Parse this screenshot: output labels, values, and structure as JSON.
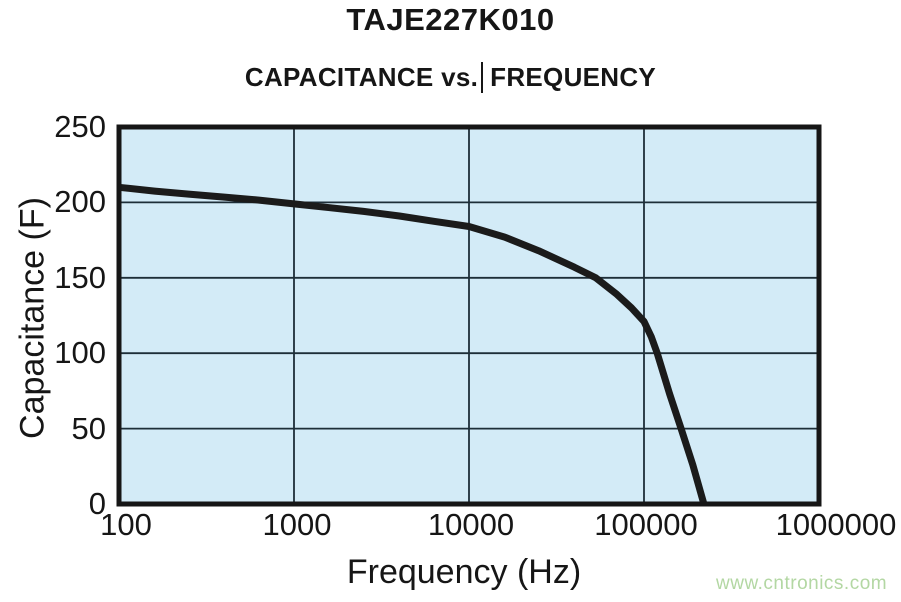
{
  "page": {
    "title": "TAJE227K010",
    "subtitle_left": "CAPACITANCE vs.",
    "subtitle_right": "FREQUENCY",
    "watermark": "www.cntronics.com"
  },
  "chart_data": {
    "type": "line",
    "title": "TAJE227K010",
    "subtitle": "CAPACITANCE vs. FREQUENCY",
    "xlabel": "Frequency (Hz)",
    "ylabel": "Capacitance (F)",
    "x_scale": "log",
    "xlim": [
      100,
      1000000
    ],
    "ylim": [
      0,
      250
    ],
    "x_ticks": [
      100,
      1000,
      10000,
      100000,
      1000000
    ],
    "y_ticks": [
      0,
      50,
      100,
      150,
      200,
      250
    ],
    "grid": true,
    "legend_position": "none",
    "plot_bg": "#d3ebf7",
    "grid_color": "#1d2e38",
    "border_color": "#161616",
    "series": [
      {
        "name": "capacitance",
        "color": "#1b1b1b",
        "points": [
          [
            100,
            210
          ],
          [
            160,
            207.5
          ],
          [
            250,
            205.5
          ],
          [
            400,
            203.5
          ],
          [
            630,
            201.5
          ],
          [
            1000,
            199
          ],
          [
            1600,
            196.5
          ],
          [
            2500,
            194
          ],
          [
            4000,
            191
          ],
          [
            6300,
            187.5
          ],
          [
            10000,
            184
          ],
          [
            16000,
            177
          ],
          [
            25000,
            168
          ],
          [
            40000,
            157
          ],
          [
            53000,
            150
          ],
          [
            70000,
            139
          ],
          [
            85000,
            130
          ],
          [
            100000,
            121
          ],
          [
            110000,
            111
          ],
          [
            119000,
            100
          ],
          [
            140000,
            73
          ],
          [
            163000,
            50
          ],
          [
            190000,
            26
          ],
          [
            220000,
            0
          ]
        ]
      }
    ]
  }
}
